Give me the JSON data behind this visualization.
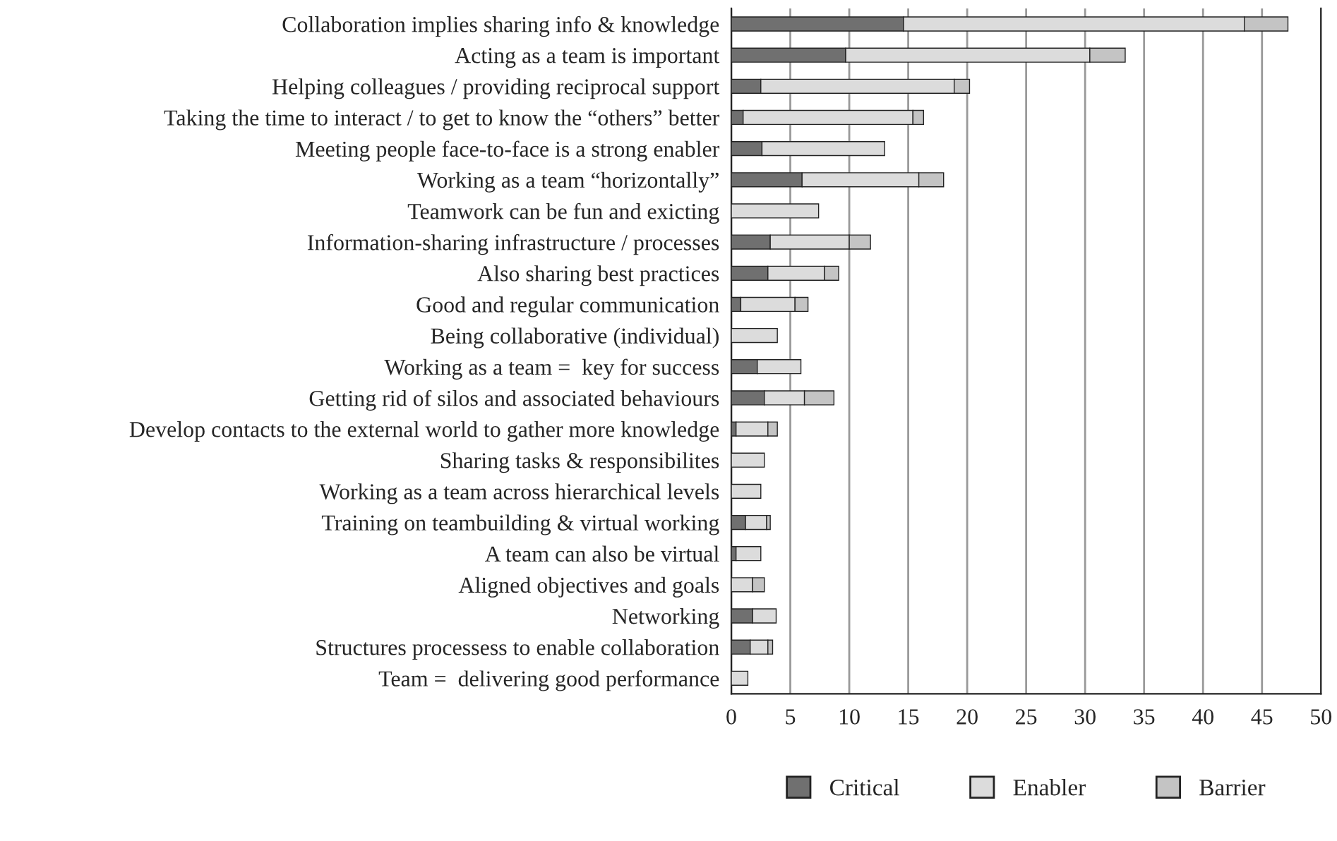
{
  "chart_data": {
    "type": "bar",
    "orientation": "horizontal",
    "stacked": true,
    "categories": [
      "Collaboration implies sharing info & knowledge",
      "Acting as a team is important",
      "Helping colleagues / providing reciprocal support",
      "Taking the time to interact / to get to know the “others” better",
      "Meeting people face-to-face is a strong enabler",
      "Working as a team “horizontally”",
      "Teamwork can be fun and exicting",
      "Information-sharing infrastructure / processes",
      "Also sharing best practices",
      "Good and regular communication",
      "Being collaborative (individual)",
      "Working as a team =  key for success",
      "Getting rid of silos and associated behaviours",
      "Develop contacts to the external world to gather more knowledge",
      "Sharing tasks & responsibilites",
      "Working as a team across hierarchical levels",
      "Training on teambuilding & virtual working",
      "A team can also be virtual",
      "Aligned objectives and goals",
      "Networking",
      "Structures processess to enable collaboration",
      "Team =  delivering good performance"
    ],
    "series": [
      {
        "name": "Critical",
        "color": "#707070",
        "values": [
          14.6,
          9.7,
          2.5,
          1.0,
          2.6,
          6.0,
          null,
          3.3,
          3.1,
          0.8,
          null,
          2.2,
          2.8,
          0.4,
          null,
          null,
          1.2,
          0.4,
          null,
          1.8,
          1.6,
          null
        ]
      },
      {
        "name": "Enabler",
        "color": "#dcdcdc",
        "values": [
          28.9,
          20.7,
          16.4,
          14.4,
          10.4,
          9.9,
          7.4,
          6.7,
          4.8,
          4.6,
          3.9,
          3.7,
          3.4,
          2.7,
          2.8,
          2.5,
          1.8,
          2.1,
          1.8,
          2.0,
          1.5,
          1.4
        ]
      },
      {
        "name": "Barrier",
        "color": "#c4c4c4",
        "values": [
          3.7,
          3.0,
          1.3,
          0.9,
          null,
          2.1,
          null,
          1.8,
          1.2,
          1.1,
          null,
          null,
          2.5,
          0.8,
          null,
          null,
          0.3,
          null,
          1.0,
          null,
          0.4,
          null
        ]
      }
    ],
    "xlim": [
      0,
      50
    ],
    "xticks": [
      0,
      5,
      10,
      15,
      20,
      25,
      30,
      35,
      40,
      45,
      50
    ],
    "grid": "x",
    "legend": "bottom"
  }
}
